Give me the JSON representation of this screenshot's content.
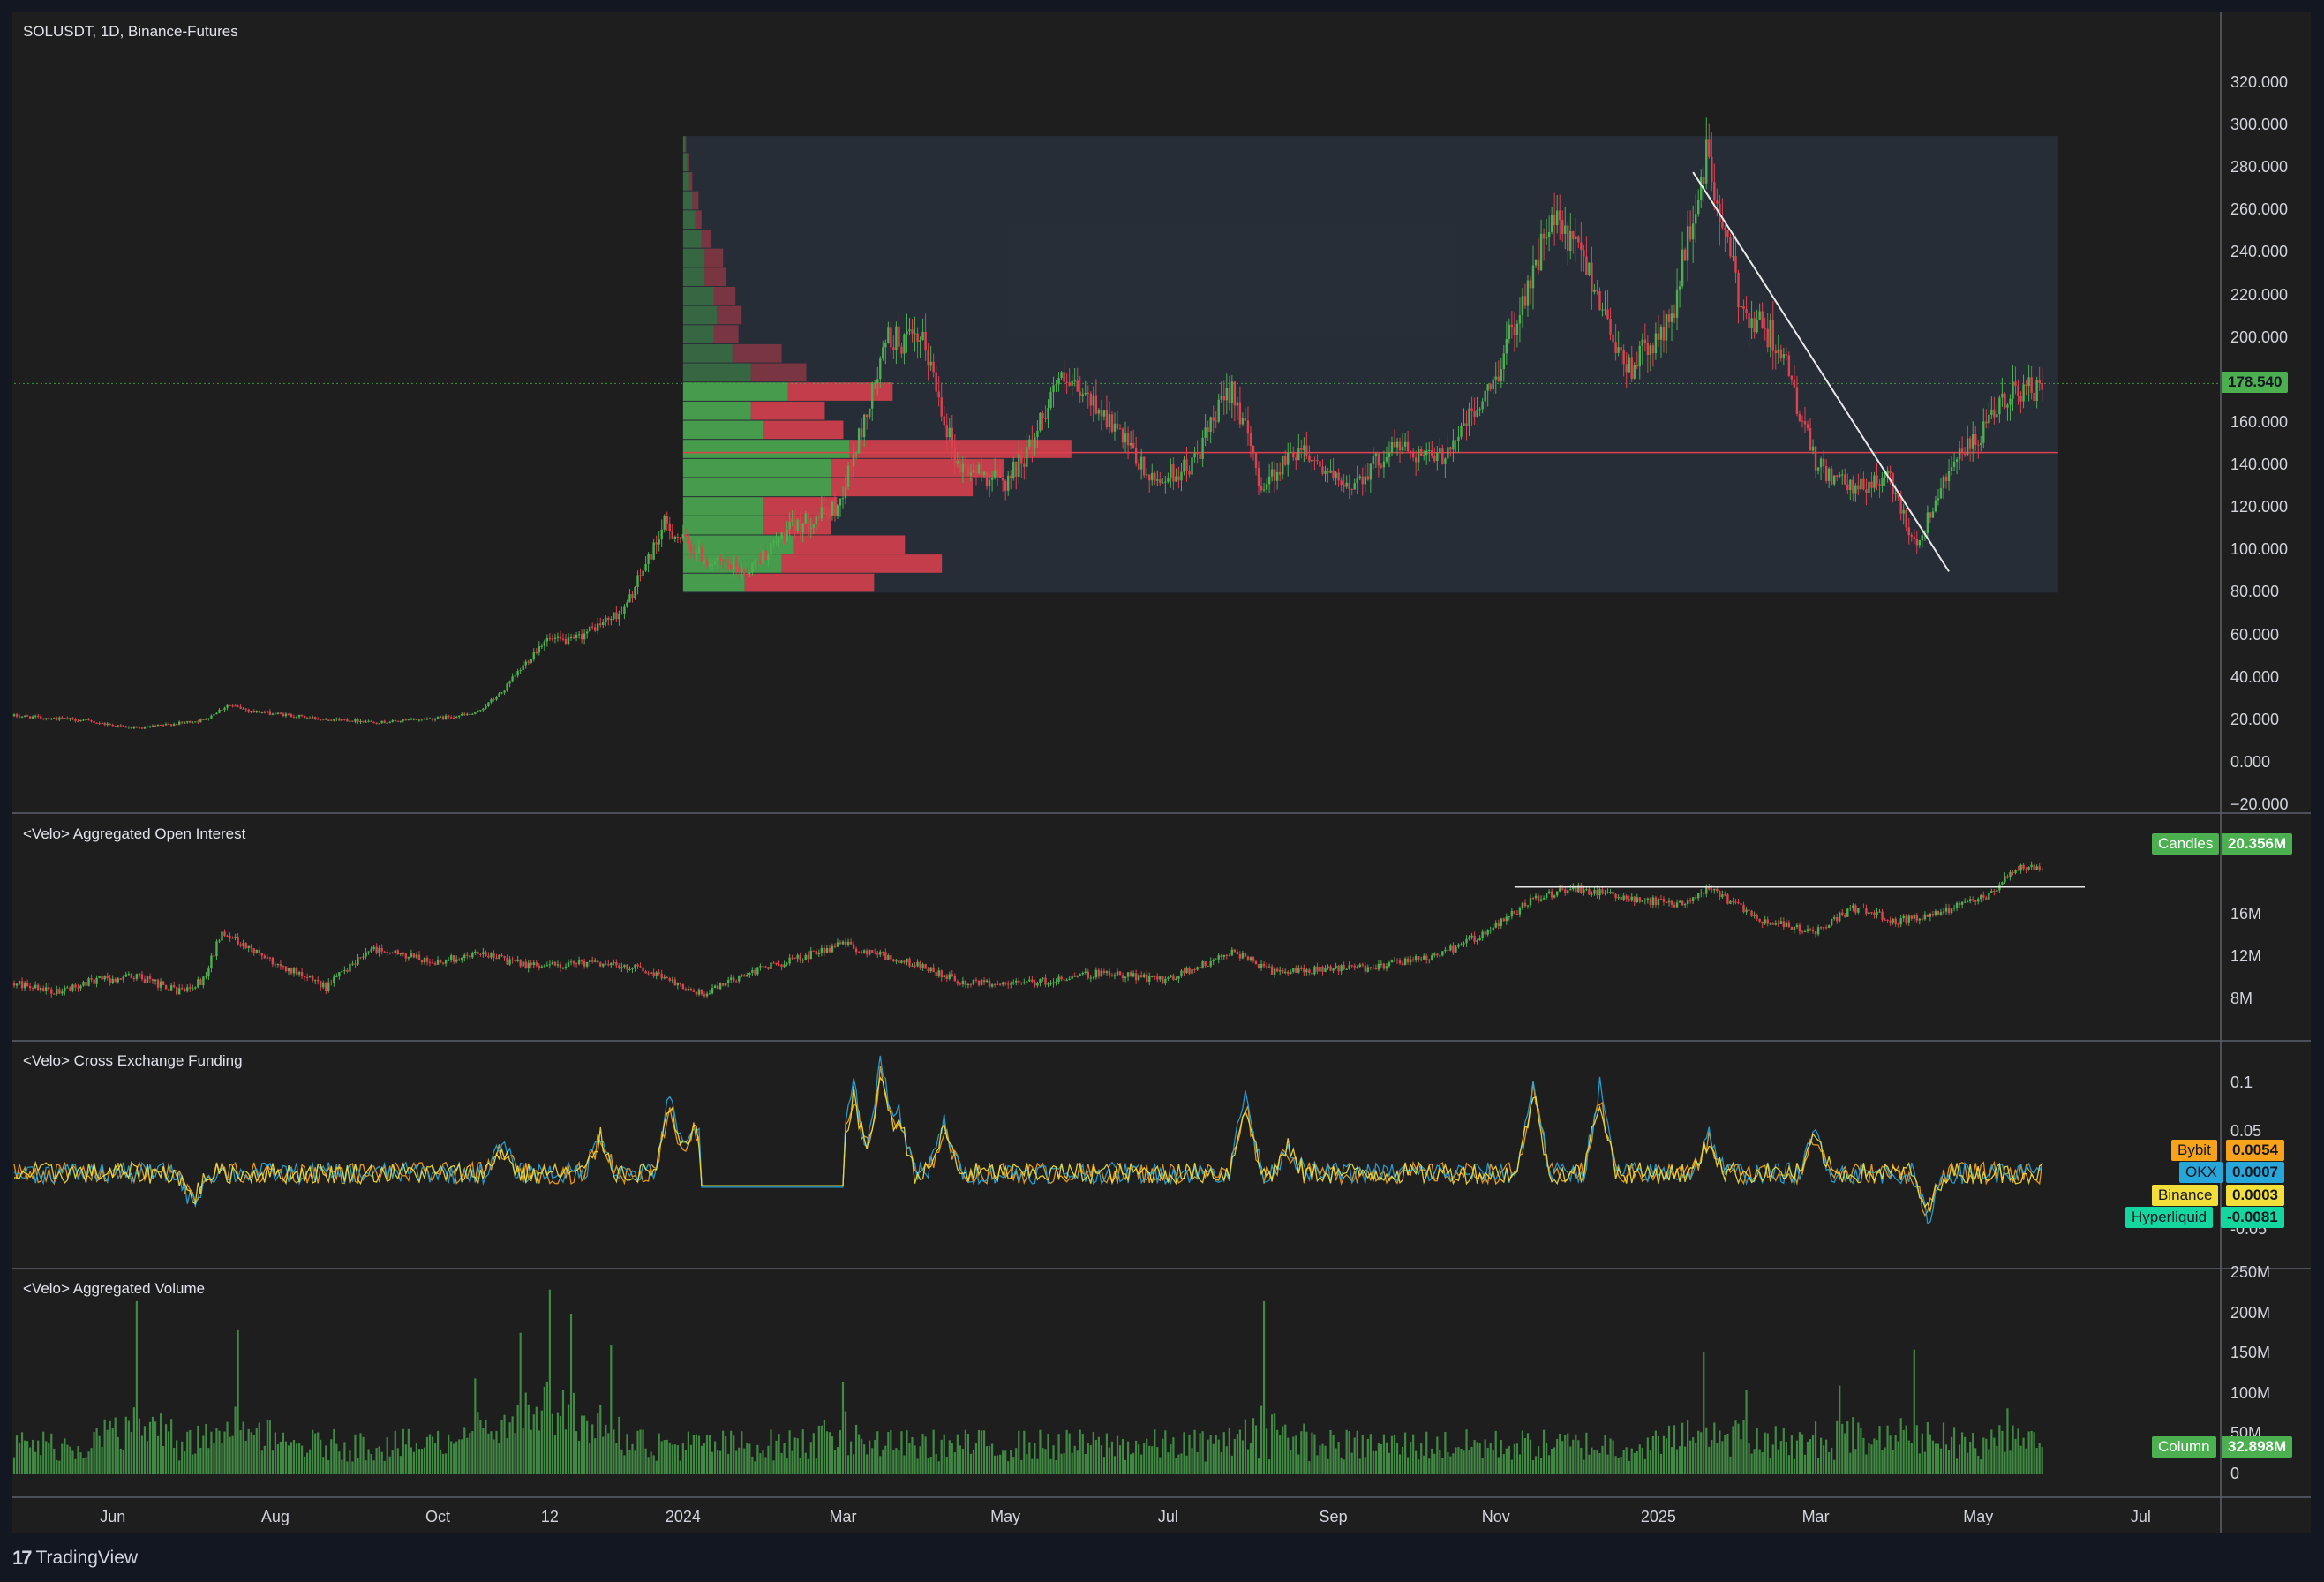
{
  "symbol_title": "SOLUSDT, 1D, Binance-Futures",
  "branding": {
    "logo_text": "TradingView",
    "logo_icon": "tradingview-logo-icon"
  },
  "colors": {
    "background": "#1e1e1e",
    "up": "#4caf50",
    "down": "#e0414e",
    "poc_line": "#e0414e",
    "price_badge": "#4caf50",
    "bybit": "#f7a21b",
    "okx": "#26a6d9",
    "binance": "#f3df3a",
    "hyperliquid": "#14d69f"
  },
  "chart_data": [
    {
      "type": "line",
      "pane": "price",
      "title": "SOLUSDT, 1D, Binance-Futures",
      "series_kind": "candlestick",
      "ylim": [
        -20,
        320
      ],
      "yticks": [
        "320.000",
        "300.000",
        "280.000",
        "260.000",
        "240.000",
        "220.000",
        "200.000",
        "180.000",
        "160.000",
        "140.000",
        "120.000",
        "100.000",
        "80.000",
        "60.000",
        "40.000",
        "20.000",
        "0.000",
        "−20.000"
      ],
      "ytick_values": [
        320,
        300,
        280,
        260,
        240,
        220,
        200,
        180,
        160,
        140,
        120,
        100,
        80,
        60,
        40,
        20,
        0,
        -20
      ],
      "last_price": 178.54,
      "last_price_label": "178.540",
      "close_path": [
        [
          "2023-04-25",
          22
        ],
        [
          "2023-05-20",
          20
        ],
        [
          "2023-06-10",
          16
        ],
        [
          "2023-07-05",
          20
        ],
        [
          "2023-07-14",
          27
        ],
        [
          "2023-07-25",
          24
        ],
        [
          "2023-08-15",
          21
        ],
        [
          "2023-09-10",
          19
        ],
        [
          "2023-10-01",
          21
        ],
        [
          "2023-10-15",
          23
        ],
        [
          "2023-10-25",
          33
        ],
        [
          "2023-11-10",
          58
        ],
        [
          "2023-11-20",
          57
        ],
        [
          "2023-12-10",
          72
        ],
        [
          "2023-12-25",
          112
        ],
        [
          "2024-01-10",
          95
        ],
        [
          "2024-01-25",
          90
        ],
        [
          "2024-02-10",
          110
        ],
        [
          "2024-02-28",
          120
        ],
        [
          "2024-03-10",
          165
        ],
        [
          "2024-03-18",
          200
        ],
        [
          "2024-04-01",
          196
        ],
        [
          "2024-04-13",
          140
        ],
        [
          "2024-05-01",
          132
        ],
        [
          "2024-05-10",
          148
        ],
        [
          "2024-05-20",
          180
        ],
        [
          "2024-06-05",
          168
        ],
        [
          "2024-06-25",
          132
        ],
        [
          "2024-07-10",
          140
        ],
        [
          "2024-07-25",
          178
        ],
        [
          "2024-08-05",
          130
        ],
        [
          "2024-08-20",
          150
        ],
        [
          "2024-09-05",
          128
        ],
        [
          "2024-09-25",
          150
        ],
        [
          "2024-10-10",
          142
        ],
        [
          "2024-10-30",
          175
        ],
        [
          "2024-11-10",
          215
        ],
        [
          "2024-11-22",
          255
        ],
        [
          "2024-12-05",
          235
        ],
        [
          "2024-12-20",
          185
        ],
        [
          "2025-01-05",
          205
        ],
        [
          "2025-01-19",
          285
        ],
        [
          "2025-02-01",
          215
        ],
        [
          "2025-02-15",
          198
        ],
        [
          "2025-03-01",
          140
        ],
        [
          "2025-03-15",
          128
        ],
        [
          "2025-03-28",
          135
        ],
        [
          "2025-04-08",
          102
        ],
        [
          "2025-04-20",
          140
        ],
        [
          "2025-05-01",
          152
        ],
        [
          "2025-05-14",
          176
        ],
        [
          "2025-05-25",
          175
        ]
      ],
      "annotations": {
        "volume_profile": {
          "from": "2024-01-01",
          "to": "2025-05-31",
          "price_high": 295,
          "price_low": 80,
          "poc_price": 146,
          "rows": [
            {
              "low": 80,
              "high": 89,
              "up": 1,
              "down": 2.1
            },
            {
              "low": 89,
              "high": 98,
              "up": 1.6,
              "down": 2.6
            },
            {
              "low": 98,
              "high": 107,
              "up": 1.8,
              "down": 1.8
            },
            {
              "low": 107,
              "high": 116,
              "up": 1.3,
              "down": 1.1
            },
            {
              "low": 116,
              "high": 125,
              "up": 1.3,
              "down": 1.2
            },
            {
              "low": 125,
              "high": 134,
              "up": 2.4,
              "down": 2.3
            },
            {
              "low": 134,
              "high": 143,
              "up": 2.4,
              "down": 2.8
            },
            {
              "low": 143,
              "high": 152,
              "up": 2.7,
              "down": 3.6
            },
            {
              "low": 152,
              "high": 161,
              "up": 1.3,
              "down": 1.3
            },
            {
              "low": 161,
              "high": 170,
              "up": 1.1,
              "down": 1.2
            },
            {
              "low": 170,
              "high": 179,
              "up": 1.7,
              "down": 1.7
            },
            {
              "low": 179,
              "high": 188,
              "up": 1.1,
              "down": 0.9
            },
            {
              "low": 188,
              "high": 197,
              "up": 0.8,
              "down": 0.8
            },
            {
              "low": 197,
              "high": 206,
              "up": 0.5,
              "down": 0.4
            },
            {
              "low": 206,
              "high": 215,
              "up": 0.55,
              "down": 0.4
            },
            {
              "low": 215,
              "high": 224,
              "up": 0.5,
              "down": 0.35
            },
            {
              "low": 224,
              "high": 233,
              "up": 0.35,
              "down": 0.35
            },
            {
              "low": 233,
              "high": 242,
              "up": 0.35,
              "down": 0.3
            },
            {
              "low": 242,
              "high": 251,
              "up": 0.3,
              "down": 0.15
            },
            {
              "low": 251,
              "high": 260,
              "up": 0.2,
              "down": 0.1
            },
            {
              "low": 260,
              "high": 269,
              "up": 0.15,
              "down": 0.1
            },
            {
              "low": 269,
              "high": 278,
              "up": 0.1,
              "down": 0.05
            },
            {
              "low": 278,
              "high": 287,
              "up": 0.06,
              "down": 0.04
            },
            {
              "low": 287,
              "high": 295,
              "up": 0.03,
              "down": 0.02
            }
          ]
        },
        "trendline": {
          "from": [
            "2025-01-14",
            278
          ],
          "to": [
            "2025-04-20",
            90
          ]
        }
      }
    },
    {
      "type": "line",
      "pane": "open_interest",
      "title": "<Velo> Aggregated Open Interest",
      "series_kind": "candlestick",
      "ylim": [
        5,
        23
      ],
      "yticks": [
        "16M",
        "12M",
        "8M"
      ],
      "ytick_values": [
        16,
        12,
        8
      ],
      "last_value_label": "20.356M",
      "series_label": "Candles",
      "horizontal_line": {
        "from": "2024-11-08",
        "to": "2025-06-10",
        "value": 18.6
      },
      "close_path": [
        [
          "2023-04-25",
          9.5
        ],
        [
          "2023-05-10",
          8.6
        ],
        [
          "2023-05-25",
          9.8
        ],
        [
          "2023-06-10",
          10.2
        ],
        [
          "2023-06-25",
          8.8
        ],
        [
          "2023-07-05",
          9.8
        ],
        [
          "2023-07-12",
          14.4
        ],
        [
          "2023-07-30",
          11.8
        ],
        [
          "2023-08-20",
          9.1
        ],
        [
          "2023-09-05",
          12.8
        ],
        [
          "2023-09-30",
          11.5
        ],
        [
          "2023-10-15",
          12.4
        ],
        [
          "2023-11-05",
          11.1
        ],
        [
          "2023-11-25",
          11.4
        ],
        [
          "2023-12-15",
          11.1
        ],
        [
          "2023-12-30",
          9.6
        ],
        [
          "2024-01-08",
          8.5
        ],
        [
          "2024-01-25",
          10.5
        ],
        [
          "2024-02-15",
          12.0
        ],
        [
          "2024-03-01",
          13.2
        ],
        [
          "2024-03-15",
          12.2
        ],
        [
          "2024-04-01",
          11.0
        ],
        [
          "2024-04-15",
          9.6
        ],
        [
          "2024-05-10",
          9.5
        ],
        [
          "2024-06-05",
          10.5
        ],
        [
          "2024-07-01",
          9.8
        ],
        [
          "2024-07-25",
          12.5
        ],
        [
          "2024-08-10",
          10.6
        ],
        [
          "2024-09-15",
          11.0
        ],
        [
          "2024-10-10",
          12.1
        ],
        [
          "2024-10-30",
          14.5
        ],
        [
          "2024-11-15",
          17.5
        ],
        [
          "2024-12-01",
          18.5
        ],
        [
          "2024-12-20",
          17.5
        ],
        [
          "2025-01-10",
          17.0
        ],
        [
          "2025-01-20",
          18.4
        ],
        [
          "2025-02-10",
          15.3
        ],
        [
          "2025-03-01",
          14.5
        ],
        [
          "2025-03-15",
          16.6
        ],
        [
          "2025-04-01",
          15.4
        ],
        [
          "2025-04-20",
          16.5
        ],
        [
          "2025-05-05",
          17.8
        ],
        [
          "2025-05-15",
          20.3
        ],
        [
          "2025-05-25",
          20.4
        ]
      ]
    },
    {
      "type": "line",
      "pane": "funding",
      "title": "<Velo> Cross Exchange Funding",
      "ylim": [
        -0.08,
        0.13
      ],
      "yticks": [
        "0.1",
        "0.05",
        "-0.05"
      ],
      "ytick_values": [
        0.1,
        0.05,
        -0.05
      ],
      "series": [
        {
          "name": "Bybit",
          "value_label": "0.0054"
        },
        {
          "name": "OKX",
          "value_label": "0.0007"
        },
        {
          "name": "Binance",
          "value_label": "0.0003"
        },
        {
          "name": "Hyperliquid",
          "value_label": "-0.0081"
        }
      ],
      "spikes": [
        [
          "2023-07-01",
          -0.03
        ],
        [
          "2023-10-25",
          0.028
        ],
        [
          "2023-12-01",
          0.04
        ],
        [
          "2023-12-27",
          0.075
        ],
        [
          "2024-01-05",
          0.05
        ],
        [
          "2024-03-05",
          0.09
        ],
        [
          "2024-03-15",
          0.112
        ],
        [
          "2024-03-22",
          0.062
        ],
        [
          "2024-04-08",
          0.05
        ],
        [
          "2024-07-30",
          0.08
        ],
        [
          "2024-08-15",
          0.028
        ],
        [
          "2024-11-15",
          0.092
        ],
        [
          "2024-12-10",
          0.085
        ],
        [
          "2025-01-20",
          0.038
        ],
        [
          "2025-03-01",
          0.04
        ],
        [
          "2025-04-12",
          -0.045
        ]
      ],
      "flat_period": {
        "from": "2024-01-08",
        "to": "2024-03-01",
        "value": -0.005
      }
    },
    {
      "type": "bar",
      "pane": "volume",
      "title": "<Velo> Aggregated Volume",
      "ylim": [
        0,
        250
      ],
      "yticks": [
        "250M",
        "200M",
        "150M",
        "100M",
        "50M",
        "0"
      ],
      "ytick_values": [
        250,
        200,
        150,
        100,
        50,
        0
      ],
      "series_label": "Column",
      "last_value_label": "32.898M",
      "spikes": [
        [
          "2023-06-10",
          215
        ],
        [
          "2023-07-18",
          180
        ],
        [
          "2023-10-15",
          118
        ],
        [
          "2023-11-01",
          155
        ],
        [
          "2023-11-12",
          225
        ],
        [
          "2023-11-20",
          195
        ],
        [
          "2023-12-05",
          160
        ],
        [
          "2024-03-01",
          115
        ],
        [
          "2024-08-06",
          215
        ],
        [
          "2025-01-18",
          150
        ],
        [
          "2025-02-03",
          105
        ],
        [
          "2025-03-10",
          110
        ],
        [
          "2025-04-07",
          155
        ],
        [
          "2025-05-12",
          82
        ]
      ],
      "base_level": 45
    }
  ],
  "time_axis": {
    "labels": [
      {
        "text": "Jun",
        "date": "2023-06-01"
      },
      {
        "text": "Aug",
        "date": "2023-08-01"
      },
      {
        "text": "Oct",
        "date": "2023-10-01"
      },
      {
        "text": "12",
        "date": "2023-11-12"
      },
      {
        "text": "2024",
        "date": "2024-01-01"
      },
      {
        "text": "Mar",
        "date": "2024-03-01"
      },
      {
        "text": "May",
        "date": "2024-05-01"
      },
      {
        "text": "Jul",
        "date": "2024-07-01"
      },
      {
        "text": "Sep",
        "date": "2024-09-01"
      },
      {
        "text": "Nov",
        "date": "2024-11-01"
      },
      {
        "text": "2025",
        "date": "2025-01-01"
      },
      {
        "text": "Mar",
        "date": "2025-03-01"
      },
      {
        "text": "May",
        "date": "2025-05-01"
      },
      {
        "text": "Jul",
        "date": "2025-07-01"
      }
    ]
  }
}
